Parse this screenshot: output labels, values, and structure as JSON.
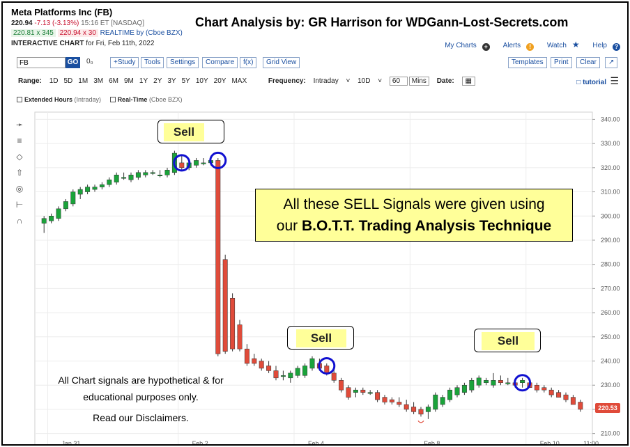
{
  "header": {
    "ticker_title": "Meta Platforms Inc (FB)",
    "last_price": "220.94",
    "change": "-7.13 (-3.13%)",
    "time": "15:16 ET [NASDAQ]",
    "bid": "220.81 x 345",
    "ask": "220.94 x 30",
    "realtime": "REALTIME by (Cboe BZX)",
    "interactive_label": "INTERACTIVE CHART",
    "interactive_date": "for Fri, Feb 11th, 2022",
    "analysis_title": "Chart Analysis by: GR Harrison for WDGann-Lost-Secrets.com"
  },
  "links": {
    "my_charts": "My Charts",
    "alerts": "Alerts",
    "watch": "Watch",
    "help": "Help"
  },
  "toolbar": {
    "symbol_value": "FB",
    "go": "GO",
    "compare_icon": "0₀",
    "study": "+Study",
    "tools": "Tools",
    "settings": "Settings",
    "compare": "Compare",
    "fx": "f(x)",
    "grid_view": "Grid View",
    "templates": "Templates",
    "print": "Print",
    "clear": "Clear",
    "expand_icon": "↗"
  },
  "rangebar": {
    "range_label": "Range:",
    "ranges": [
      "1D",
      "5D",
      "1M",
      "3M",
      "6M",
      "9M",
      "1Y",
      "2Y",
      "3Y",
      "5Y",
      "10Y",
      "20Y",
      "MAX"
    ],
    "frequency_label": "Frequency:",
    "frequency_value": "Intraday",
    "period_value": "10D",
    "mins_value": "60",
    "mins_label": "Mins",
    "date_label": "Date:",
    "tutorial": "tutorial"
  },
  "options": {
    "extended_hours": "Extended Hours",
    "extended_hours_note": "(Intraday)",
    "real_time": "Real-Time",
    "real_time_note": "(Cboe BZX)"
  },
  "chart_data": {
    "type": "candlestick",
    "ylim": [
      205,
      343
    ],
    "yticks": [
      210,
      220,
      230,
      240,
      250,
      260,
      270,
      280,
      290,
      300,
      310,
      320,
      330,
      340
    ],
    "x_tick_labels": [
      "Jan 31",
      "Feb 2",
      "Feb 4",
      "Feb 8",
      "Feb 10",
      "11:00"
    ],
    "last_price_label": "220.53",
    "candles": [
      {
        "o": 297,
        "h": 300,
        "l": 293,
        "c": 299
      },
      {
        "o": 298,
        "h": 301,
        "l": 297,
        "c": 300
      },
      {
        "o": 299,
        "h": 304,
        "l": 298,
        "c": 303
      },
      {
        "o": 303,
        "h": 307,
        "l": 302,
        "c": 306
      },
      {
        "o": 305,
        "h": 311,
        "l": 304,
        "c": 310
      },
      {
        "o": 309,
        "h": 312,
        "l": 307,
        "c": 311
      },
      {
        "o": 310,
        "h": 313,
        "l": 309,
        "c": 312
      },
      {
        "o": 311,
        "h": 313,
        "l": 310,
        "c": 312
      },
      {
        "o": 312,
        "h": 314,
        "l": 311,
        "c": 313
      },
      {
        "o": 313,
        "h": 316,
        "l": 312,
        "c": 315
      },
      {
        "o": 314,
        "h": 318,
        "l": 313,
        "c": 317
      },
      {
        "o": 316,
        "h": 318,
        "l": 315,
        "c": 316
      },
      {
        "o": 315,
        "h": 318,
        "l": 314,
        "c": 317
      },
      {
        "o": 316,
        "h": 319,
        "l": 315,
        "c": 318
      },
      {
        "o": 317,
        "h": 319,
        "l": 316,
        "c": 318
      },
      {
        "o": 318,
        "h": 319,
        "l": 317,
        "c": 318
      },
      {
        "o": 317,
        "h": 319,
        "l": 316,
        "c": 317
      },
      {
        "o": 317,
        "h": 320,
        "l": 316,
        "c": 319
      },
      {
        "o": 318,
        "h": 327,
        "l": 317,
        "c": 326
      },
      {
        "o": 322,
        "h": 325,
        "l": 319,
        "c": 320
      },
      {
        "o": 320,
        "h": 323,
        "l": 319,
        "c": 322
      },
      {
        "o": 321,
        "h": 324,
        "l": 320,
        "c": 323
      },
      {
        "o": 322,
        "h": 324,
        "l": 321,
        "c": 322
      },
      {
        "o": 322,
        "h": 324,
        "l": 321,
        "c": 323
      },
      {
        "o": 323,
        "h": 324,
        "l": 242,
        "c": 243
      },
      {
        "o": 282,
        "h": 284,
        "l": 243,
        "c": 244
      },
      {
        "o": 266,
        "h": 268,
        "l": 244,
        "c": 245
      },
      {
        "o": 255,
        "h": 257,
        "l": 244,
        "c": 245
      },
      {
        "o": 245,
        "h": 247,
        "l": 238,
        "c": 239
      },
      {
        "o": 241,
        "h": 243,
        "l": 238,
        "c": 239
      },
      {
        "o": 240,
        "h": 241,
        "l": 236,
        "c": 237
      },
      {
        "o": 238,
        "h": 240,
        "l": 235,
        "c": 236
      },
      {
        "o": 236,
        "h": 238,
        "l": 232,
        "c": 233
      },
      {
        "o": 234,
        "h": 236,
        "l": 232,
        "c": 234
      },
      {
        "o": 233,
        "h": 236,
        "l": 231,
        "c": 235
      },
      {
        "o": 234,
        "h": 238,
        "l": 233,
        "c": 237
      },
      {
        "o": 234,
        "h": 239,
        "l": 233,
        "c": 238
      },
      {
        "o": 237,
        "h": 242,
        "l": 236,
        "c": 241
      },
      {
        "o": 239,
        "h": 241,
        "l": 236,
        "c": 237
      },
      {
        "o": 238,
        "h": 239,
        "l": 234,
        "c": 235
      },
      {
        "o": 235,
        "h": 237,
        "l": 231,
        "c": 232
      },
      {
        "o": 232,
        "h": 233,
        "l": 227,
        "c": 228
      },
      {
        "o": 229,
        "h": 230,
        "l": 224,
        "c": 225
      },
      {
        "o": 227,
        "h": 229,
        "l": 225,
        "c": 228
      },
      {
        "o": 228,
        "h": 229,
        "l": 226,
        "c": 227
      },
      {
        "o": 227,
        "h": 228,
        "l": 226,
        "c": 227
      },
      {
        "o": 227,
        "h": 228,
        "l": 223,
        "c": 224
      },
      {
        "o": 225,
        "h": 226,
        "l": 222,
        "c": 223
      },
      {
        "o": 224,
        "h": 225,
        "l": 222,
        "c": 223
      },
      {
        "o": 223,
        "h": 225,
        "l": 221,
        "c": 222
      },
      {
        "o": 222,
        "h": 224,
        "l": 219,
        "c": 220
      },
      {
        "o": 221,
        "h": 223,
        "l": 218,
        "c": 219
      },
      {
        "o": 220,
        "h": 221,
        "l": 217,
        "c": 218
      },
      {
        "o": 219,
        "h": 222,
        "l": 216,
        "c": 221
      },
      {
        "o": 220,
        "h": 227,
        "l": 219,
        "c": 226
      },
      {
        "o": 222,
        "h": 226,
        "l": 221,
        "c": 225
      },
      {
        "o": 224,
        "h": 229,
        "l": 223,
        "c": 228
      },
      {
        "o": 226,
        "h": 230,
        "l": 225,
        "c": 229
      },
      {
        "o": 227,
        "h": 231,
        "l": 226,
        "c": 230
      },
      {
        "o": 228,
        "h": 233,
        "l": 227,
        "c": 232
      },
      {
        "o": 230,
        "h": 234,
        "l": 229,
        "c": 233
      },
      {
        "o": 231,
        "h": 233,
        "l": 230,
        "c": 232
      },
      {
        "o": 230,
        "h": 235,
        "l": 229,
        "c": 232
      },
      {
        "o": 232,
        "h": 234,
        "l": 230,
        "c": 231
      },
      {
        "o": 231,
        "h": 233,
        "l": 230,
        "c": 231
      },
      {
        "o": 231,
        "h": 232,
        "l": 229,
        "c": 230
      },
      {
        "o": 231,
        "h": 233,
        "l": 229,
        "c": 232
      },
      {
        "o": 231,
        "h": 232,
        "l": 229,
        "c": 229
      },
      {
        "o": 230,
        "h": 231,
        "l": 227,
        "c": 228
      },
      {
        "o": 229,
        "h": 230,
        "l": 227,
        "c": 228
      },
      {
        "o": 228,
        "h": 229,
        "l": 225,
        "c": 226
      },
      {
        "o": 227,
        "h": 228,
        "l": 225,
        "c": 225
      },
      {
        "o": 226,
        "h": 227,
        "l": 223,
        "c": 224
      },
      {
        "o": 225,
        "h": 226,
        "l": 222,
        "c": 222
      },
      {
        "o": 223,
        "h": 224,
        "l": 219,
        "c": 220
      }
    ],
    "sell_signal_candle_indices": [
      19,
      24,
      39,
      66
    ],
    "annotations": {
      "sell_label": "Sell",
      "callout_line1": "All these SELL Signals were given using",
      "callout_line2_plain": "our ",
      "callout_line2_bold": "B.O.T.T. Trading Analysis Technique",
      "disclaimer_line1": "All Chart signals are hypothetical & for",
      "disclaimer_line2": "educational purposes only.",
      "disclaimer_line3": "Read our Disclaimers."
    },
    "colors": {
      "up": "#1aa33a",
      "down": "#e04b3a",
      "circle": "#1010d0",
      "callout_bg": "#ffff99"
    }
  }
}
